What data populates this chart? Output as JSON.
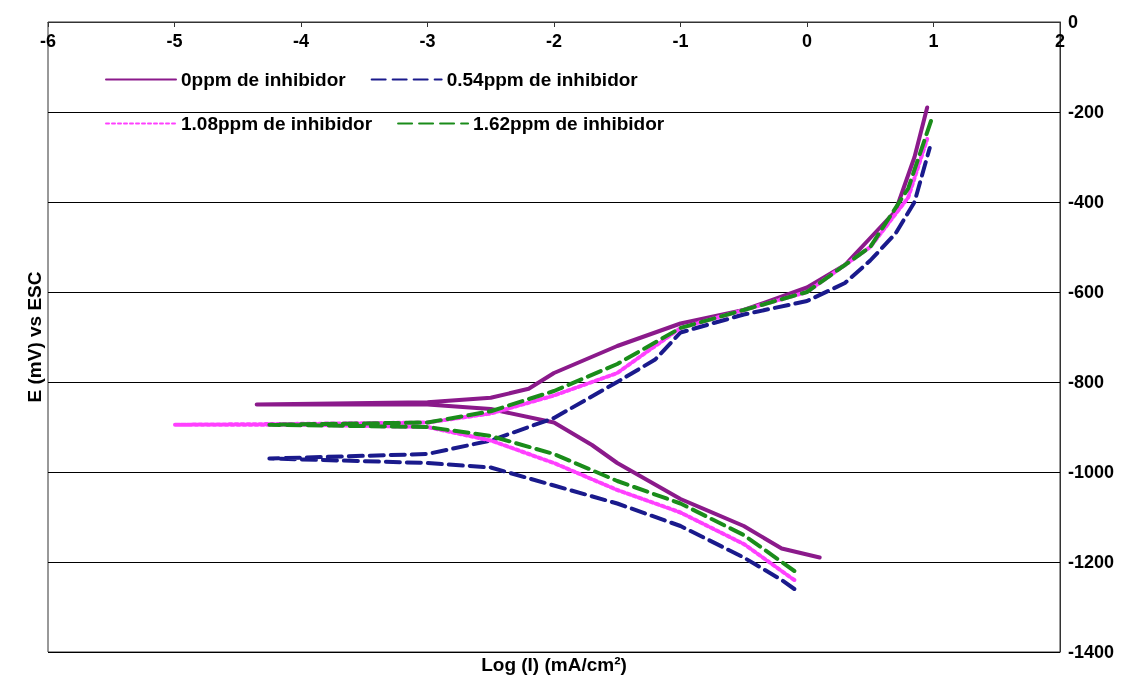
{
  "chart_data": {
    "type": "line",
    "xlabel": "Log (I) (mA/cm²)",
    "ylabel": "E (mV) vs ESC",
    "xlim": [
      -6,
      2
    ],
    "xticks": [
      -6,
      -5,
      -4,
      -3,
      -2,
      -1,
      0,
      1,
      2
    ],
    "ylim": [
      -1400,
      0
    ],
    "yticks": [
      -1400,
      -1200,
      -1000,
      -800,
      -600,
      -400,
      -200,
      0
    ],
    "grid": "y",
    "legend": "top left",
    "marker": "none",
    "series": [
      {
        "name": "0ppm de inhibidor",
        "color": "#8b1a8b",
        "line_style": "solid",
        "x": [
          0.1,
          -0.2,
          -0.5,
          -1,
          -1.5,
          -1.7,
          -2,
          -2.5,
          -3,
          -4.35,
          -3,
          -2.5,
          -2.2,
          -2,
          -1.5,
          -1,
          -0.5,
          0,
          0.3,
          0.5,
          0.7,
          0.85,
          0.95
        ],
        "values": [
          -1190,
          -1170,
          -1120,
          -1060,
          -980,
          -940,
          -890,
          -860,
          -850,
          -850,
          -845,
          -835,
          -815,
          -780,
          -720,
          -670,
          -640,
          -590,
          -540,
          -480,
          -420,
          -300,
          -190
        ]
      },
      {
        "name": "0.54ppm de inhibidor",
        "color": "#1a1a8c",
        "line_style": "dashed",
        "x": [
          -0.1,
          -0.2,
          -0.5,
          -1,
          -1.5,
          -2,
          -2.5,
          -3,
          -4.25,
          -3,
          -2.5,
          -2,
          -1.5,
          -1.2,
          -1,
          -0.5,
          0,
          0.3,
          0.5,
          0.7,
          0.85,
          0.97
        ],
        "values": [
          -1260,
          -1240,
          -1190,
          -1120,
          -1070,
          -1030,
          -990,
          -980,
          -970,
          -960,
          -930,
          -880,
          -800,
          -750,
          -690,
          -650,
          -620,
          -580,
          -530,
          -470,
          -400,
          -280
        ]
      },
      {
        "name": "1.08ppm de inhibidor",
        "color": "#ff40ff",
        "line_style": "dotted",
        "x": [
          -0.1,
          -0.5,
          -1,
          -1.5,
          -2,
          -2.5,
          -3,
          -4,
          -5,
          -4,
          -3,
          -2.5,
          -2,
          -1.5,
          -1.2,
          -1,
          -0.5,
          0,
          0.5,
          0.8,
          0.95
        ],
        "values": [
          -1240,
          -1160,
          -1090,
          -1040,
          -980,
          -930,
          -900,
          -895,
          -895,
          -893,
          -890,
          -870,
          -830,
          -780,
          -720,
          -680,
          -640,
          -600,
          -500,
          -390,
          -260
        ]
      },
      {
        "name": "1.62ppm de inhibidor",
        "color": "#1a8c1a",
        "line_style": "dashed",
        "x": [
          -0.1,
          -0.5,
          -1,
          -1.5,
          -2,
          -2.5,
          -3,
          -4.25,
          -3,
          -2.5,
          -2,
          -1.5,
          -1,
          -0.5,
          0,
          0.5,
          0.8,
          0.98
        ],
        "values": [
          -1220,
          -1140,
          -1070,
          -1020,
          -960,
          -920,
          -900,
          -895,
          -890,
          -865,
          -820,
          -760,
          -680,
          -640,
          -600,
          -500,
          -370,
          -220
        ]
      }
    ]
  }
}
